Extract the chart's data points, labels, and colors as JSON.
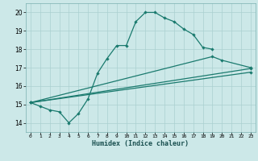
{
  "xlabel": "Humidex (Indice chaleur)",
  "xlim": [
    -0.5,
    23.5
  ],
  "ylim": [
    13.5,
    20.5
  ],
  "xticks": [
    0,
    1,
    2,
    3,
    4,
    5,
    6,
    7,
    8,
    9,
    10,
    11,
    12,
    13,
    14,
    15,
    16,
    17,
    18,
    19,
    20,
    21,
    22,
    23
  ],
  "yticks": [
    14,
    15,
    16,
    17,
    18,
    19,
    20
  ],
  "background_color": "#cce8e8",
  "grid_color": "#aad0d0",
  "line_color": "#1a7a6e",
  "line1_x": [
    0,
    1,
    2,
    3,
    4,
    5,
    6,
    7,
    8,
    9,
    10,
    11,
    12,
    13,
    14,
    15,
    16,
    17,
    18,
    19
  ],
  "line1_y": [
    15.1,
    14.9,
    14.7,
    14.6,
    14.0,
    14.5,
    15.3,
    16.7,
    17.5,
    18.2,
    18.2,
    19.5,
    20.0,
    20.0,
    19.7,
    19.5,
    19.1,
    18.8,
    18.1,
    18.0
  ],
  "line2_x": [
    0,
    19,
    20,
    23
  ],
  "line2_y": [
    15.1,
    17.6,
    17.4,
    17.0
  ],
  "line3_x": [
    0,
    23
  ],
  "line3_y": [
    15.1,
    16.95
  ],
  "line4_x": [
    0,
    23
  ],
  "line4_y": [
    15.1,
    16.75
  ]
}
